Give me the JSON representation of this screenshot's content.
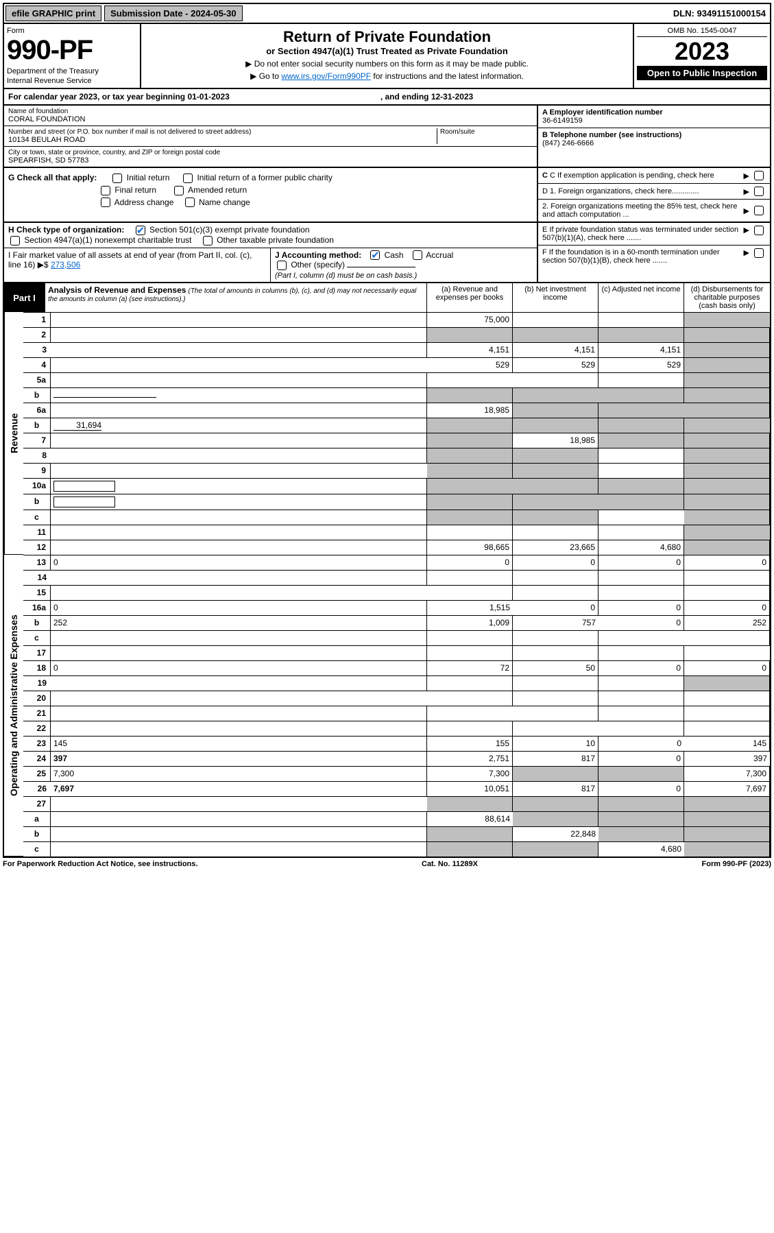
{
  "colors": {
    "link": "#0066cc",
    "black": "#000000",
    "grey_btn": "#bfbfbf",
    "grey_cell": "#bfbfbf",
    "check_blue": "#1a6dd6"
  },
  "top_bar": {
    "efile": "efile GRAPHIC print",
    "submission": "Submission Date - 2024-05-30",
    "dln": "DLN: 93491151000154"
  },
  "header": {
    "form_word": "Form",
    "form_num": "990-PF",
    "dept1": "Department of the Treasury",
    "dept2": "Internal Revenue Service",
    "title": "Return of Private Foundation",
    "subtitle": "or Section 4947(a)(1) Trust Treated as Private Foundation",
    "inst1": "▶ Do not enter social security numbers on this form as it may be made public.",
    "inst2_pre": "▶ Go to ",
    "inst2_link": "www.irs.gov/Form990PF",
    "inst2_post": " for instructions and the latest information.",
    "omb": "OMB No. 1545-0047",
    "year": "2023",
    "open": "Open to Public Inspection"
  },
  "calyear": {
    "text": "For calendar year 2023, or tax year beginning 01-01-2023",
    "ending": ", and ending 12-31-2023"
  },
  "foundation": {
    "name_label": "Name of foundation",
    "name": "CORAL FOUNDATION",
    "addr_label": "Number and street (or P.O. box number if mail is not delivered to street address)",
    "room_label": "Room/suite",
    "addr": "10134 BEULAH ROAD",
    "city_label": "City or town, state or province, country, and ZIP or foreign postal code",
    "city": "SPEARFISH, SD  57783"
  },
  "right_info": {
    "a_label": "A Employer identification number",
    "a_val": "36-6149159",
    "b_label": "B Telephone number (see instructions)",
    "b_val": "(847) 246-6666",
    "c_label": "C If exemption application is pending, check here",
    "d1": "D 1. Foreign organizations, check here.............",
    "d2": "2. Foreign organizations meeting the 85% test, check here and attach computation ...",
    "e": "E  If private foundation status was terminated under section 507(b)(1)(A), check here .......",
    "f": "F  If the foundation is in a 60-month termination under section 507(b)(1)(B), check here ......."
  },
  "g": {
    "label": "G Check all that apply:",
    "opts": [
      "Initial return",
      "Initial return of a former public charity",
      "Final return",
      "Amended return",
      "Address change",
      "Name change"
    ]
  },
  "h": {
    "label": "H Check type of organization:",
    "opt1": "Section 501(c)(3) exempt private foundation",
    "opt2": "Section 4947(a)(1) nonexempt charitable trust",
    "opt3": "Other taxable private foundation"
  },
  "i": {
    "label": "I Fair market value of all assets at end of year (from Part II, col. (c), line 16)",
    "arrow": "▶$",
    "val": "273,506"
  },
  "j": {
    "label": "J Accounting method:",
    "cash": "Cash",
    "accrual": "Accrual",
    "other": "Other (specify)",
    "note": "(Part I, column (d) must be on cash basis.)"
  },
  "part1_header": {
    "tag": "Part I",
    "title": "Analysis of Revenue and Expenses",
    "note": "(The total of amounts in columns (b), (c), and (d) may not necessarily equal the amounts in column (a) (see instructions).)",
    "col_a": "(a)   Revenue and expenses per books",
    "col_b": "(b)   Net investment income",
    "col_c": "(c)   Adjusted net income",
    "col_d": "(d)   Disbursements for charitable purposes (cash basis only)"
  },
  "side_labels": {
    "revenue": "Revenue",
    "expenses": "Operating and Administrative Expenses"
  },
  "rows": [
    {
      "n": "1",
      "d": "",
      "a": "75,000",
      "b": "",
      "c": "",
      "grey": [
        "d"
      ]
    },
    {
      "n": "2",
      "d": "",
      "a": "",
      "b": "",
      "c": "",
      "grey": [
        "a",
        "b",
        "c",
        "d"
      ]
    },
    {
      "n": "3",
      "d": "",
      "a": "4,151",
      "b": "4,151",
      "c": "4,151",
      "grey": [
        "d"
      ]
    },
    {
      "n": "4",
      "d": "",
      "a": "529",
      "b": "529",
      "c": "529",
      "grey": [
        "d"
      ]
    },
    {
      "n": "5a",
      "d": "",
      "a": "",
      "b": "",
      "c": "",
      "grey": [
        "d"
      ]
    },
    {
      "n": "b",
      "d": "",
      "a": "",
      "b": "",
      "c": "",
      "grey": [
        "a",
        "b",
        "c",
        "d"
      ],
      "underline": true
    },
    {
      "n": "6a",
      "d": "",
      "a": "18,985",
      "b": "",
      "c": "",
      "grey": [
        "b",
        "c",
        "d"
      ]
    },
    {
      "n": "b",
      "d": "",
      "a": "",
      "b": "",
      "c": "",
      "grey": [
        "a",
        "b",
        "c",
        "d"
      ],
      "inline_val": "31,694"
    },
    {
      "n": "7",
      "d": "",
      "a": "",
      "b": "18,985",
      "c": "",
      "grey": [
        "a",
        "c",
        "d"
      ]
    },
    {
      "n": "8",
      "d": "",
      "a": "",
      "b": "",
      "c": "",
      "grey": [
        "a",
        "b",
        "d"
      ]
    },
    {
      "n": "9",
      "d": "",
      "a": "",
      "b": "",
      "c": "",
      "grey": [
        "a",
        "b",
        "d"
      ]
    },
    {
      "n": "10a",
      "d": "",
      "a": "",
      "b": "",
      "c": "",
      "grey": [
        "a",
        "b",
        "c",
        "d"
      ],
      "box": true
    },
    {
      "n": "b",
      "d": "",
      "a": "",
      "b": "",
      "c": "",
      "grey": [
        "a",
        "b",
        "c",
        "d"
      ],
      "box": true
    },
    {
      "n": "c",
      "d": "",
      "a": "",
      "b": "",
      "c": "",
      "grey": [
        "a",
        "b",
        "d"
      ]
    },
    {
      "n": "11",
      "d": "",
      "a": "",
      "b": "",
      "c": "",
      "grey": [
        "d"
      ]
    },
    {
      "n": "12",
      "d": "",
      "a": "98,665",
      "b": "23,665",
      "c": "4,680",
      "grey": [
        "d"
      ],
      "bold": true
    },
    {
      "n": "13",
      "d": "0",
      "a": "0",
      "b": "0",
      "c": "0"
    },
    {
      "n": "14",
      "d": "",
      "a": "",
      "b": "",
      "c": ""
    },
    {
      "n": "15",
      "d": "",
      "a": "",
      "b": "",
      "c": ""
    },
    {
      "n": "16a",
      "d": "0",
      "a": "1,515",
      "b": "0",
      "c": "0"
    },
    {
      "n": "b",
      "d": "252",
      "a": "1,009",
      "b": "757",
      "c": "0"
    },
    {
      "n": "c",
      "d": "",
      "a": "",
      "b": "",
      "c": ""
    },
    {
      "n": "17",
      "d": "",
      "a": "",
      "b": "",
      "c": ""
    },
    {
      "n": "18",
      "d": "0",
      "a": "72",
      "b": "50",
      "c": "0"
    },
    {
      "n": "19",
      "d": "",
      "a": "",
      "b": "",
      "c": "",
      "grey": [
        "d"
      ]
    },
    {
      "n": "20",
      "d": "",
      "a": "",
      "b": "",
      "c": ""
    },
    {
      "n": "21",
      "d": "",
      "a": "",
      "b": "",
      "c": ""
    },
    {
      "n": "22",
      "d": "",
      "a": "",
      "b": "",
      "c": ""
    },
    {
      "n": "23",
      "d": "145",
      "a": "155",
      "b": "10",
      "c": "0"
    },
    {
      "n": "24",
      "d": "397",
      "a": "2,751",
      "b": "817",
      "c": "0",
      "bold": true
    },
    {
      "n": "25",
      "d": "7,300",
      "a": "7,300",
      "b": "",
      "c": "",
      "grey": [
        "b",
        "c"
      ]
    },
    {
      "n": "26",
      "d": "7,697",
      "a": "10,051",
      "b": "817",
      "c": "0",
      "bold": true
    },
    {
      "n": "27",
      "d": "",
      "a": "",
      "b": "",
      "c": "",
      "grey": [
        "a",
        "b",
        "c",
        "d"
      ]
    },
    {
      "n": "a",
      "d": "",
      "a": "88,614",
      "b": "",
      "c": "",
      "grey": [
        "b",
        "c",
        "d"
      ],
      "bold": true
    },
    {
      "n": "b",
      "d": "",
      "a": "",
      "b": "22,848",
      "c": "",
      "grey": [
        "a",
        "c",
        "d"
      ],
      "bold": true
    },
    {
      "n": "c",
      "d": "",
      "a": "",
      "b": "",
      "c": "4,680",
      "grey": [
        "a",
        "b",
        "d"
      ],
      "bold": true
    }
  ],
  "revenue_rows": 16,
  "footer": {
    "left": "For Paperwork Reduction Act Notice, see instructions.",
    "mid": "Cat. No. 11289X",
    "right": "Form 990-PF (2023)"
  }
}
